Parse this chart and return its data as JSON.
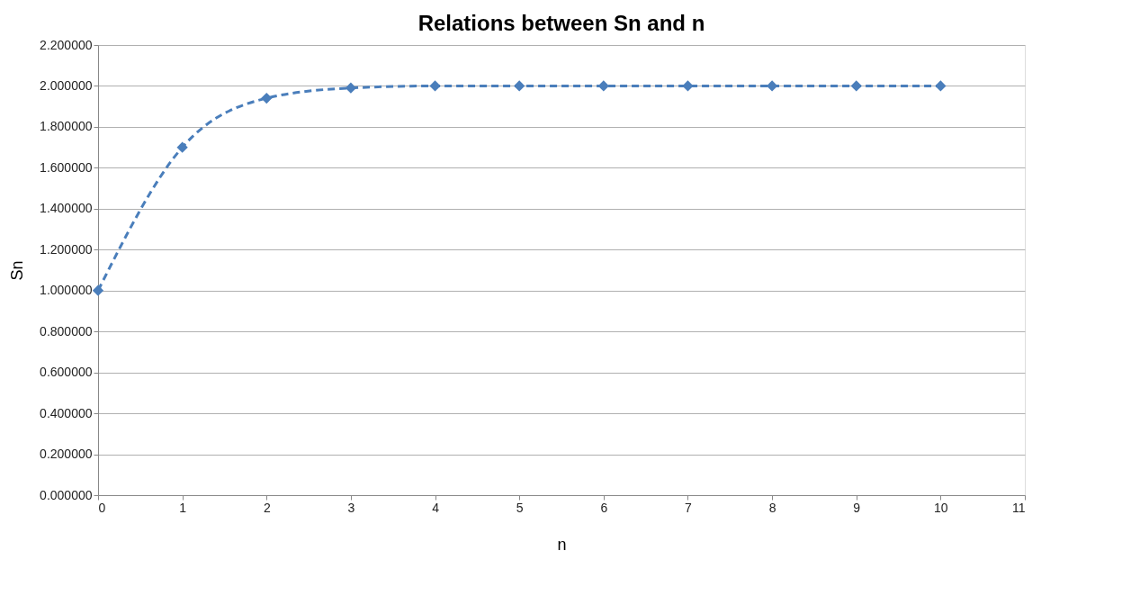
{
  "chart_data": {
    "type": "line",
    "title": "Relations between Sn and n",
    "xlabel": "n",
    "ylabel": "Sn",
    "x": [
      0,
      1,
      2,
      3,
      4,
      5,
      6,
      7,
      8,
      9,
      10
    ],
    "series": [
      {
        "color": "#4a7ebb",
        "values": [
          1.0,
          1.7,
          1.94,
          1.99,
          2.0,
          2.0,
          2.0,
          2.0,
          2.0,
          2.0,
          2.0
        ]
      }
    ],
    "xlim": [
      0,
      11
    ],
    "xticks": [
      0,
      1,
      2,
      3,
      4,
      5,
      6,
      7,
      8,
      9,
      10,
      11
    ],
    "ylim": [
      0,
      2.2
    ],
    "yticks": [
      {
        "value": 0,
        "label": "0.000000"
      },
      {
        "value": 0.2,
        "label": "0.200000"
      },
      {
        "value": 0.4,
        "label": "0.400000"
      },
      {
        "value": 0.6,
        "label": "0.600000"
      },
      {
        "value": 0.8,
        "label": "0.800000"
      },
      {
        "value": 1.0,
        "label": "1.000000"
      },
      {
        "value": 1.2,
        "label": "1.200000"
      },
      {
        "value": 1.4,
        "label": "1.400000"
      },
      {
        "value": 1.6,
        "label": "1.600000"
      },
      {
        "value": 1.8,
        "label": "1.800000"
      },
      {
        "value": 2.0,
        "label": "2.000000"
      },
      {
        "value": 2.2,
        "label": "2.200000"
      }
    ],
    "grid": "y",
    "marker": "diamond",
    "line_style": "dashed"
  }
}
